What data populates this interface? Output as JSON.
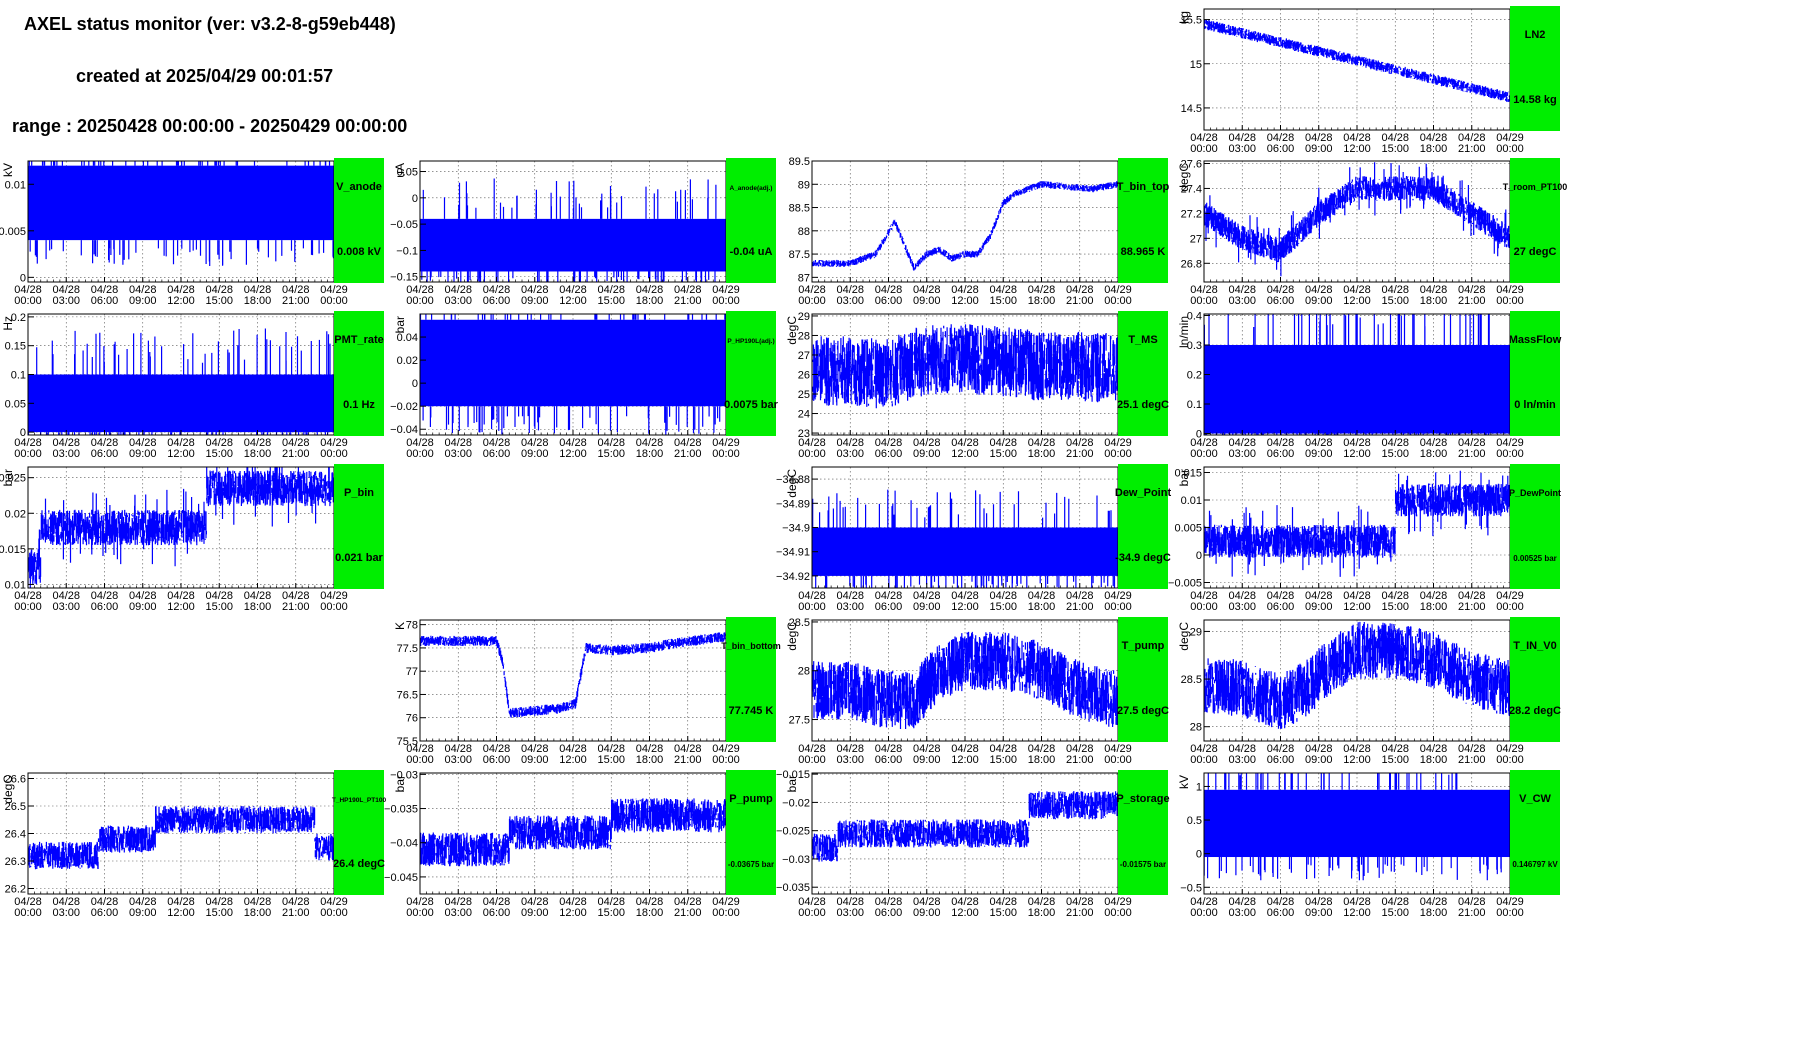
{
  "header": {
    "title": "AXEL status monitor (ver: v3.2-8-g59eb448)",
    "created": "created at 2025/04/29 00:01:57",
    "range": "range : 20250428 00:00:00 - 20250429 00:00:00"
  },
  "colors": {
    "trace": "#0000ff",
    "box": "#00ee00",
    "frame": "#000000",
    "grid": "#555555"
  },
  "time_axis": {
    "dates": [
      "04/28",
      "04/28",
      "04/28",
      "04/28",
      "04/28",
      "04/28",
      "04/28",
      "04/28",
      "04/29"
    ],
    "times": [
      "00:00",
      "03:00",
      "06:00",
      "09:00",
      "12:00",
      "15:00",
      "18:00",
      "21:00",
      "00:00"
    ],
    "xlim_hours": [
      0,
      24
    ]
  },
  "chart_data": [
    {
      "type": "line",
      "row": 0,
      "col": 3,
      "name": "LN2",
      "value": "14.58 kg",
      "ylabel": "kg",
      "ylim": [
        14.25,
        15.62
      ],
      "yticks": [
        "14.5",
        "15",
        "15.5"
      ],
      "ytick_values": [
        14.5,
        15,
        15.5
      ],
      "trend": {
        "x": [
          0,
          24
        ],
        "y": [
          15.45,
          14.62
        ]
      },
      "band": 0.12
    },
    {
      "type": "line",
      "row": 1,
      "col": 0,
      "name": "V_anode",
      "value": "0.008 kV",
      "ylabel": "kV",
      "ylim": [
        -0.0005,
        0.0125
      ],
      "yticks": [
        "0",
        "0.005",
        "0.01"
      ],
      "ytick_values": [
        0,
        0.005,
        0.01
      ],
      "levels": [
        0.004,
        0.012
      ],
      "solid": true
    },
    {
      "type": "line",
      "row": 1,
      "col": 1,
      "name": "A_anode(adj.)",
      "value": "-0.04 uA",
      "ylabel": "uA",
      "ylim": [
        -0.16,
        0.07
      ],
      "yticks": [
        "−0.15",
        "−0.1",
        "−0.05",
        "0",
        "0.05"
      ],
      "ytick_values": [
        -0.15,
        -0.1,
        -0.05,
        0,
        0.05
      ],
      "levels": [
        -0.14,
        -0.04
      ],
      "solid": true
    },
    {
      "type": "line",
      "row": 1,
      "col": 2,
      "name": "T_bin_top",
      "value": "88.965 K",
      "ylabel": "",
      "ylim": [
        86.9,
        89.5
      ],
      "yticks": [
        "87",
        "87.5",
        "88",
        "88.5",
        "89",
        "89.5"
      ],
      "ytick_values": [
        87,
        87.5,
        88,
        88.5,
        89,
        89.5
      ],
      "trend": {
        "x": [
          0,
          3,
          5,
          6.5,
          8,
          9,
          10,
          11,
          12,
          13,
          14,
          15,
          16,
          18,
          20,
          22,
          24
        ],
        "y": [
          87.3,
          87.3,
          87.5,
          88.2,
          87.2,
          87.5,
          87.6,
          87.4,
          87.5,
          87.5,
          87.9,
          88.6,
          88.8,
          89.0,
          88.95,
          88.9,
          89.0
        ]
      },
      "band": 0.15
    },
    {
      "type": "line",
      "row": 1,
      "col": 3,
      "name": "T_room_PT100",
      "value": "27 degC",
      "ylabel": "degC",
      "ylim": [
        26.65,
        27.62
      ],
      "yticks": [
        "26.8",
        "27",
        "27.2",
        "27.4",
        "27.6"
      ],
      "ytick_values": [
        26.8,
        27,
        27.2,
        27.4,
        27.6
      ],
      "levels": [
        26.95,
        27.25
      ],
      "trend": {
        "x": [
          0,
          3,
          6,
          9,
          12,
          15,
          18,
          21,
          24
        ],
        "y": [
          27.2,
          27.0,
          26.9,
          27.2,
          27.4,
          27.4,
          27.4,
          27.2,
          27.0
        ]
      },
      "band": 0.2
    },
    {
      "type": "line",
      "row": 2,
      "col": 0,
      "name": "PMT_rate",
      "value": "0.1 Hz",
      "ylabel": "Hz",
      "ylim": [
        -0.005,
        0.205
      ],
      "yticks": [
        "0",
        "0.05",
        "0.1",
        "0.15",
        "0.2"
      ],
      "ytick_values": [
        0,
        0.05,
        0.1,
        0.15,
        0.2
      ],
      "levels": [
        0,
        0.1
      ],
      "solid": true
    },
    {
      "type": "line",
      "row": 2,
      "col": 1,
      "name": "P_HP190L(adj.)",
      "value": "0.0075 bar",
      "ylabel": "bar",
      "ylim": [
        -0.045,
        0.06
      ],
      "yticks": [
        "−0.04",
        "−0.02",
        "0",
        "0.02",
        "0.04"
      ],
      "ytick_values": [
        -0.04,
        -0.02,
        0,
        0.02,
        0.04
      ],
      "levels": [
        -0.02,
        0.055
      ],
      "solid": true
    },
    {
      "type": "line",
      "row": 2,
      "col": 2,
      "name": "T_MS",
      "value": "25.1 degC",
      "ylabel": "degC",
      "ylim": [
        22.9,
        29.1
      ],
      "yticks": [
        "23",
        "24",
        "25",
        "26",
        "27",
        "28",
        "29"
      ],
      "ytick_values": [
        23,
        24,
        25,
        26,
        27,
        28,
        29
      ],
      "trend": {
        "x": [
          0,
          3,
          6,
          8,
          10,
          12,
          14,
          16,
          18,
          21,
          24
        ],
        "y": [
          26.2,
          26.2,
          26.0,
          26.6,
          26.8,
          26.8,
          26.7,
          26.6,
          26.4,
          26.4,
          26.3
        ]
      },
      "band": 3.6
    },
    {
      "type": "line",
      "row": 2,
      "col": 3,
      "name": "MassFlow",
      "value": "0 ln/min",
      "ylabel": "ln/min",
      "ylim": [
        -0.005,
        0.405
      ],
      "yticks": [
        "0",
        "0.1",
        "0.2",
        "0.3",
        "0.4"
      ],
      "ytick_values": [
        0,
        0.1,
        0.2,
        0.3,
        0.4
      ],
      "levels": [
        0,
        0.3
      ],
      "solid": true
    },
    {
      "type": "line",
      "row": 3,
      "col": 0,
      "name": "P_bin",
      "value": "0.021 bar",
      "ylabel": "bar",
      "ylim": [
        0.0095,
        0.0265
      ],
      "yticks": [
        "0.01",
        "0.015",
        "0.02",
        "0.025"
      ],
      "ytick_values": [
        0.01,
        0.015,
        0.02,
        0.025
      ],
      "levels": [
        0.0155,
        0.021
      ],
      "trend": {
        "x": [
          0,
          1,
          1.01,
          14,
          14.01,
          24
        ],
        "y": [
          0.0125,
          0.0125,
          0.018,
          0.018,
          0.0235,
          0.0235
        ]
      },
      "band": 0.005
    },
    {
      "type": "line",
      "row": 3,
      "col": 2,
      "name": "Dew_Point",
      "value": "-34.9 degC",
      "ylabel": "degC",
      "ylim": [
        -34.925,
        -34.875
      ],
      "yticks": [
        "−34.92",
        "−34.91",
        "−34.9",
        "−34.89",
        "−34.88"
      ],
      "ytick_values": [
        -34.92,
        -34.91,
        -34.9,
        -34.89,
        -34.88
      ],
      "levels": [
        -34.92,
        -34.9
      ],
      "solid": true
    },
    {
      "type": "line",
      "row": 3,
      "col": 3,
      "name": "P_DewPoint",
      "value": "0.00525 bar",
      "ylabel": "bar",
      "ylim": [
        -0.006,
        0.016
      ],
      "yticks": [
        "−0.005",
        "0",
        "0.005",
        "0.01",
        "0.015"
      ],
      "ytick_values": [
        -0.005,
        0,
        0.005,
        0.01,
        0.015
      ],
      "levels": [
        0,
        0.0105
      ],
      "trend": {
        "x": [
          0,
          15,
          15.01,
          24
        ],
        "y": [
          0.0025,
          0.0025,
          0.01,
          0.01
        ]
      },
      "band": 0.006
    },
    {
      "type": "line",
      "row": 4,
      "col": 1,
      "name": "T_bin_bottom",
      "value": "77.745 K",
      "ylabel": "K",
      "ylim": [
        75.5,
        78.1
      ],
      "yticks": [
        "75.5",
        "76",
        "76.5",
        "77",
        "77.5",
        "78"
      ],
      "ytick_values": [
        75.5,
        76,
        76.5,
        77,
        77.5,
        78
      ],
      "trend": {
        "x": [
          0,
          6,
          6.5,
          7,
          9,
          11,
          12.2,
          13,
          15,
          18,
          20,
          24
        ],
        "y": [
          77.65,
          77.65,
          77.2,
          76.1,
          76.15,
          76.2,
          76.3,
          77.5,
          77.45,
          77.5,
          77.6,
          77.75
        ]
      },
      "band": 0.22
    },
    {
      "type": "line",
      "row": 4,
      "col": 2,
      "name": "T_pump",
      "value": "27.5 degC",
      "ylabel": "degC",
      "ylim": [
        27.28,
        28.52
      ],
      "yticks": [
        "27.5",
        "28",
        "28.5"
      ],
      "ytick_values": [
        27.5,
        28,
        28.5
      ],
      "trend": {
        "x": [
          0,
          3,
          6,
          8,
          10,
          12,
          15,
          18,
          21,
          24
        ],
        "y": [
          27.8,
          27.8,
          27.7,
          27.7,
          28.0,
          28.1,
          28.1,
          28.0,
          27.8,
          27.7
        ]
      },
      "band": 0.6
    },
    {
      "type": "line",
      "row": 4,
      "col": 3,
      "name": "T_IN_V0",
      "value": "28.2 degC",
      "ylabel": "degC",
      "ylim": [
        27.85,
        29.12
      ],
      "yticks": [
        "28",
        "28.5",
        "29"
      ],
      "ytick_values": [
        28,
        28.5,
        29
      ],
      "trend": {
        "x": [
          0,
          3,
          6,
          8,
          10,
          12,
          15,
          18,
          21,
          24
        ],
        "y": [
          28.45,
          28.4,
          28.25,
          28.4,
          28.65,
          28.8,
          28.8,
          28.7,
          28.5,
          28.4
        ]
      },
      "band": 0.6
    },
    {
      "type": "line",
      "row": 5,
      "col": 0,
      "name": "T_HP190L_PT100",
      "value": "26.4 degC",
      "ylabel": "degC",
      "ylim": [
        26.18,
        26.62
      ],
      "yticks": [
        "26.2",
        "26.3",
        "26.4",
        "26.5",
        "26.6"
      ],
      "ytick_values": [
        26.2,
        26.3,
        26.4,
        26.5,
        26.6
      ],
      "trend": {
        "x": [
          0,
          5.5,
          5.51,
          10,
          10.01,
          22.5,
          22.51,
          24
        ],
        "y": [
          26.32,
          26.32,
          26.38,
          26.38,
          26.45,
          26.45,
          26.35,
          26.35
        ]
      },
      "band": 0.1
    },
    {
      "type": "line",
      "row": 5,
      "col": 1,
      "name": "P_pump",
      "value": "-0.03675 bar",
      "ylabel": "bar",
      "ylim": [
        -0.0475,
        -0.0298
      ],
      "yticks": [
        "−0.045",
        "−0.04",
        "−0.035",
        "−0.03"
      ],
      "ytick_values": [
        -0.045,
        -0.04,
        -0.035,
        -0.03
      ],
      "trend": {
        "x": [
          0,
          7,
          7.01,
          15,
          15.01,
          24
        ],
        "y": [
          -0.041,
          -0.041,
          -0.0385,
          -0.0385,
          -0.036,
          -0.036
        ]
      },
      "band": 0.005
    },
    {
      "type": "line",
      "row": 5,
      "col": 2,
      "name": "P_storage",
      "value": "-0.01575 bar",
      "ylabel": "bar",
      "ylim": [
        -0.0362,
        -0.0148
      ],
      "yticks": [
        "−0.035",
        "−0.03",
        "−0.025",
        "−0.02",
        "−0.015"
      ],
      "ytick_values": [
        -0.035,
        -0.03,
        -0.025,
        -0.02,
        -0.015
      ],
      "trend": {
        "x": [
          0,
          2,
          2.01,
          17,
          17.01,
          24
        ],
        "y": [
          -0.028,
          -0.028,
          -0.0255,
          -0.0255,
          -0.0205,
          -0.0205
        ]
      },
      "band": 0.005
    },
    {
      "type": "line",
      "row": 5,
      "col": 3,
      "name": "V_CW",
      "value": "0.146797 kV",
      "ylabel": "kV",
      "ylim": [
        -0.6,
        1.2
      ],
      "yticks": [
        "−0.5",
        "0",
        "0.5",
        "1"
      ],
      "ytick_values": [
        -0.5,
        0,
        0.5,
        1
      ],
      "levels": [
        -0.05,
        0.95
      ],
      "solid": true
    }
  ]
}
